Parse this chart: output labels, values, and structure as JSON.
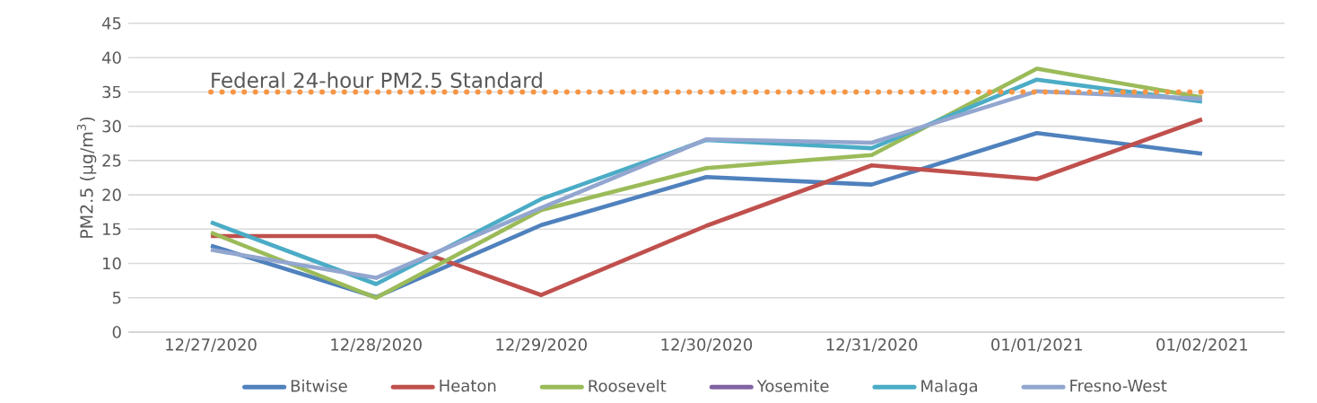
{
  "chart_data": {
    "type": "line",
    "ylabel": "PM2.5 (µg/m$^{3}$)",
    "categories": [
      "12/27/2020",
      "12/28/2020",
      "12/29/2020",
      "12/30/2020",
      "12/31/2020",
      "01/01/2021",
      "01/02/2021"
    ],
    "series": [
      {
        "name": "Bitwise",
        "color": "#4f81bd",
        "values": [
          12.6,
          5.1,
          15.6,
          22.6,
          21.5,
          29.0,
          26.0
        ]
      },
      {
        "name": "Heaton",
        "color": "#c0504d",
        "values": [
          14.0,
          14.0,
          5.4,
          15.5,
          24.3,
          22.3,
          31.0
        ]
      },
      {
        "name": "Roosevelt",
        "color": "#9bbb59",
        "values": [
          14.5,
          5.0,
          17.8,
          23.9,
          25.8,
          38.4,
          34.2
        ]
      },
      {
        "name": "Yosemite",
        "color": "#8064a2",
        "values": [
          null,
          null,
          null,
          null,
          null,
          null,
          null
        ]
      },
      {
        "name": "Malaga",
        "color": "#4bacc6",
        "values": [
          16.0,
          7.0,
          19.4,
          28.0,
          26.8,
          36.8,
          33.6
        ]
      },
      {
        "name": "Fresno-West",
        "color": "#92a6cf",
        "values": [
          12.0,
          7.9,
          18.1,
          28.1,
          27.6,
          35.1,
          34.0
        ]
      }
    ],
    "ylim": [
      0,
      45
    ],
    "yticks": [
      0,
      5,
      10,
      15,
      20,
      25,
      30,
      35,
      40,
      45
    ],
    "ref_lines": [
      {
        "axis": "y",
        "value": 35,
        "label": "Federal 24-hour PM2.5 Standard",
        "color": "#f79646",
        "line_style": "dotted"
      }
    ],
    "grid": "y",
    "legend": "bottom",
    "line_style": "solid",
    "marker": "none"
  }
}
